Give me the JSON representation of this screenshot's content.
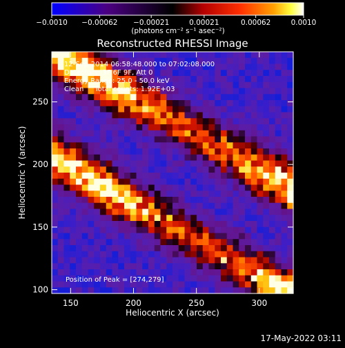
{
  "chart_data": {
    "type": "heatmap",
    "title": "Reconstructed RHESSI Image",
    "xlabel": "Heliocentric X (arcsec)",
    "ylabel": "Heliocentric Y (arcsec)",
    "xlim": [
      135,
      327
    ],
    "ylim": [
      97,
      290
    ],
    "x_ticks": [
      150,
      200,
      250,
      300
    ],
    "y_ticks": [
      100,
      150,
      200,
      250
    ],
    "colorbar": {
      "min": -0.001,
      "max": 0.001,
      "tick_values": [
        -0.001,
        -0.00062,
        -0.00021,
        0.00021,
        0.00062,
        0.001
      ],
      "tick_labels": [
        "−0.0010",
        "−0.00062",
        "−0.00021",
        "0.00021",
        "0.00062",
        "0.0010"
      ],
      "unit_label": "(photons cm⁻² s⁻¹ asec⁻²)",
      "colors": [
        "#0000ff",
        "#4b0082",
        "#000000",
        "#800000",
        "#ff0000",
        "#ff8000",
        "#ffff00",
        "#ffffff"
      ]
    },
    "annotations": [
      "12-Sep-2014 06:58:48.000 to 07:02:08.000",
      "Detectors: 3F 6F 9F, Att 0",
      "Energy Range: 25.0 - 50.0 keV",
      "Clean     Total counts: 1.92E+03"
    ],
    "peak_label": "Position of Peak = [274,279]",
    "peak": [
      274,
      279
    ],
    "ribbons": [
      {
        "x": [
          135,
          327
        ],
        "y": [
          290,
          180
        ],
        "peak_value": 0.001
      },
      {
        "x": [
          135,
          327
        ],
        "y": [
          206,
          95
        ],
        "peak_value": 0.00095
      }
    ],
    "background_level": -0.0007
  },
  "footer": {
    "timestamp": "17-May-2022 03:11"
  }
}
